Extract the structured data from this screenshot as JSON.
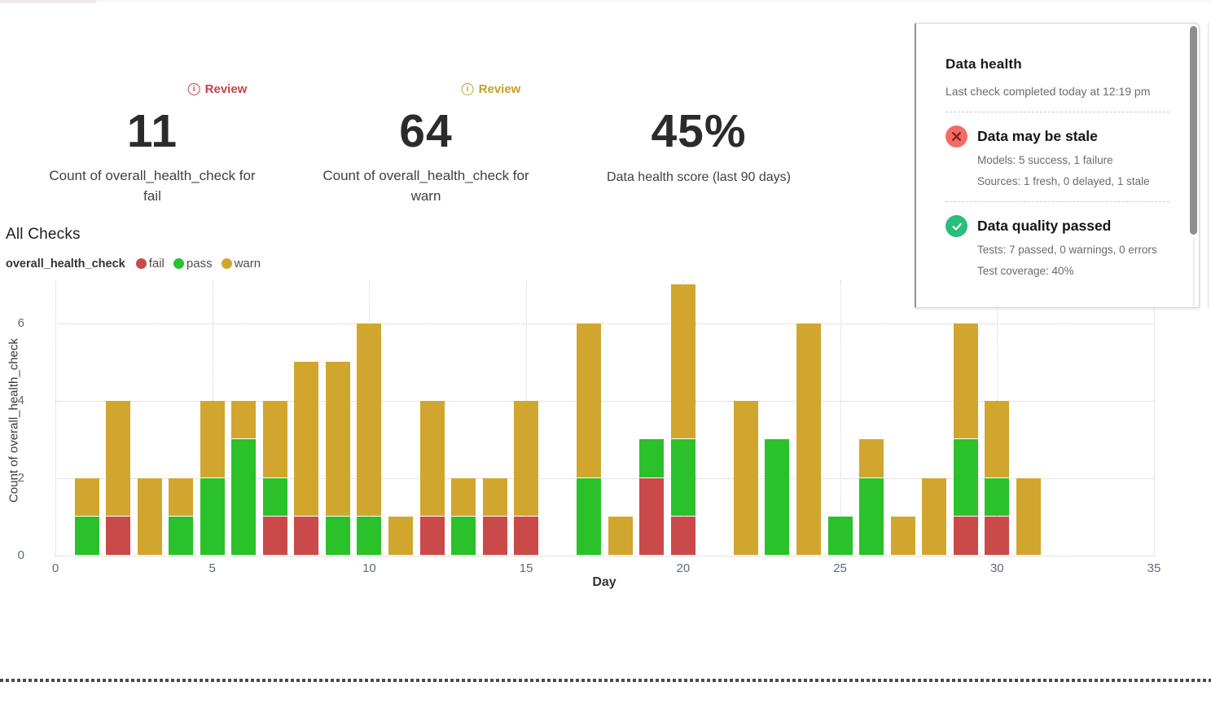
{
  "metrics": [
    {
      "badge": "Review",
      "badge_color": "#ca3e4a",
      "value": "11",
      "label": "Count of overall_health_check for fail"
    },
    {
      "badge": "Review",
      "badge_color": "#c59e27",
      "value": "64",
      "label": "Count of overall_health_check for warn"
    },
    {
      "value": "45%",
      "label": "Data health score (last 90 days)"
    }
  ],
  "section_title": "All Checks",
  "legend": {
    "series_name": "overall_health_check",
    "items": [
      {
        "label": "fail",
        "color": "#ca4949"
      },
      {
        "label": "pass",
        "color": "#2bc12b"
      },
      {
        "label": "warn",
        "color": "#d1a62e"
      }
    ]
  },
  "chart_data": {
    "type": "bar",
    "stacked": true,
    "title": "All Checks",
    "xlabel": "Day",
    "ylabel": "Count of overall_health_check",
    "x": [
      1,
      2,
      3,
      4,
      5,
      6,
      7,
      8,
      9,
      10,
      11,
      12,
      13,
      14,
      15,
      16,
      17,
      18,
      19,
      20,
      21,
      22,
      23,
      24,
      25,
      26,
      27,
      28,
      29,
      30,
      31
    ],
    "series": [
      {
        "name": "fail",
        "color": "#ca4949",
        "values": [
          0,
          1,
          0,
          0,
          0,
          0,
          1,
          1,
          0,
          0,
          0,
          1,
          0,
          1,
          1,
          0,
          0,
          0,
          2,
          1,
          0,
          0,
          0,
          0,
          0,
          0,
          0,
          0,
          1,
          1,
          0
        ]
      },
      {
        "name": "pass",
        "color": "#2bc12b",
        "values": [
          1,
          0,
          0,
          1,
          2,
          3,
          1,
          0,
          1,
          1,
          0,
          0,
          1,
          0,
          0,
          0,
          2,
          0,
          1,
          2,
          0,
          0,
          3,
          0,
          1,
          2,
          0,
          0,
          2,
          1,
          0
        ]
      },
      {
        "name": "warn",
        "color": "#d1a62e",
        "values": [
          1,
          3,
          2,
          1,
          2,
          1,
          2,
          4,
          4,
          5,
          1,
          3,
          1,
          1,
          3,
          0,
          4,
          1,
          0,
          4,
          0,
          4,
          0,
          6,
          0,
          1,
          1,
          2,
          3,
          2,
          2
        ]
      }
    ],
    "x_ticks": [
      0,
      5,
      10,
      15,
      20,
      25,
      30,
      35
    ],
    "y_ticks": [
      0,
      2,
      4,
      6
    ],
    "xlim": [
      0,
      35
    ],
    "ylim": [
      0,
      7
    ],
    "grid": "dotted",
    "legend_position": "top-left"
  },
  "health_panel": {
    "title": "Data health",
    "subtitle": "Last check completed today at 12:19 pm",
    "sections": [
      {
        "status": "error",
        "heading": "Data may be stale",
        "lines": [
          "Models: 5 success, 1 failure",
          "Sources: 1 fresh, 0 delayed, 1 stale"
        ]
      },
      {
        "status": "ok",
        "heading": "Data quality passed",
        "lines": [
          "Tests: 7 passed, 0 warnings, 0 errors",
          "Test coverage: 40%"
        ]
      }
    ]
  }
}
